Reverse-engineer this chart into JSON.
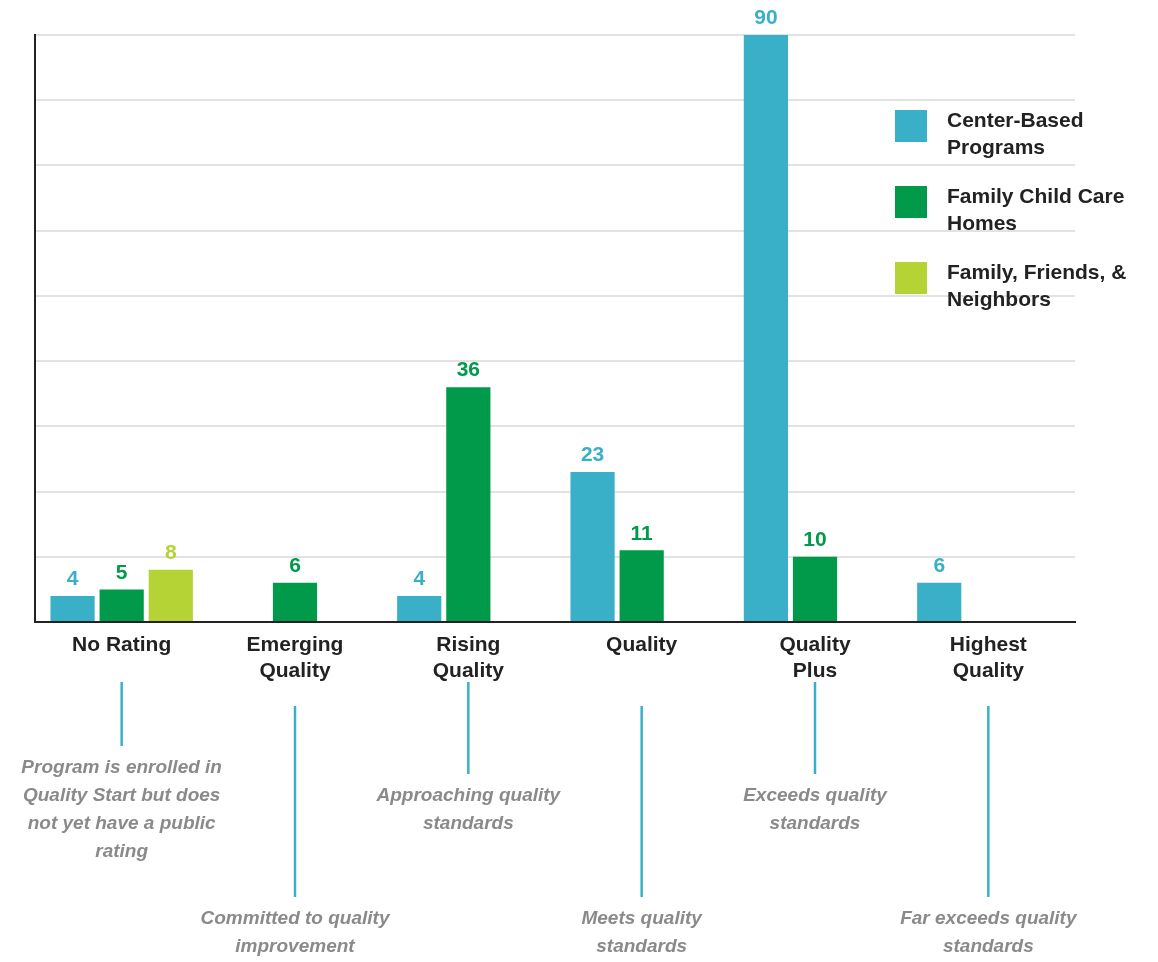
{
  "chart_data": {
    "type": "bar",
    "categories": [
      "No Rating",
      "Emerging Quality",
      "Rising Quality",
      "Quality",
      "Quality Plus",
      "Highest Quality"
    ],
    "series": [
      {
        "name": "Center-Based Programs",
        "color": "#3ab0c8",
        "values": [
          4,
          null,
          4,
          23,
          90,
          6
        ]
      },
      {
        "name": "Family Child Care Homes",
        "color": "#009a4a",
        "values": [
          5,
          6,
          36,
          11,
          10,
          null
        ]
      },
      {
        "name": "Family, Friends, & Neighbors",
        "color": "#b5d334",
        "values": [
          8,
          null,
          null,
          null,
          null,
          null
        ]
      }
    ],
    "ylim": [
      0,
      90
    ],
    "yticks": [
      {
        "value": 0,
        "label": null
      },
      {
        "value": 10,
        "label": null
      },
      {
        "value": 20,
        "label": null
      },
      {
        "value": 30,
        "label": null
      },
      {
        "value": 40,
        "label": null
      },
      {
        "value": 50,
        "label": null
      },
      {
        "value": 60,
        "label": null
      },
      {
        "value": 70,
        "label": null
      },
      {
        "value": 80,
        "label": null
      },
      {
        "value": 90,
        "label": null
      }
    ],
    "tick_labels": "x",
    "grid": "y",
    "legend": "top right",
    "data_labels": true,
    "annotations": [
      "Program is enrolled in Quality Start but does not yet have a public rating",
      "Committed to quality improvement",
      "Approaching quality standards",
      "Meets quality standards",
      "Exceeds quality standards",
      "Far exceeds quality standards"
    ]
  }
}
